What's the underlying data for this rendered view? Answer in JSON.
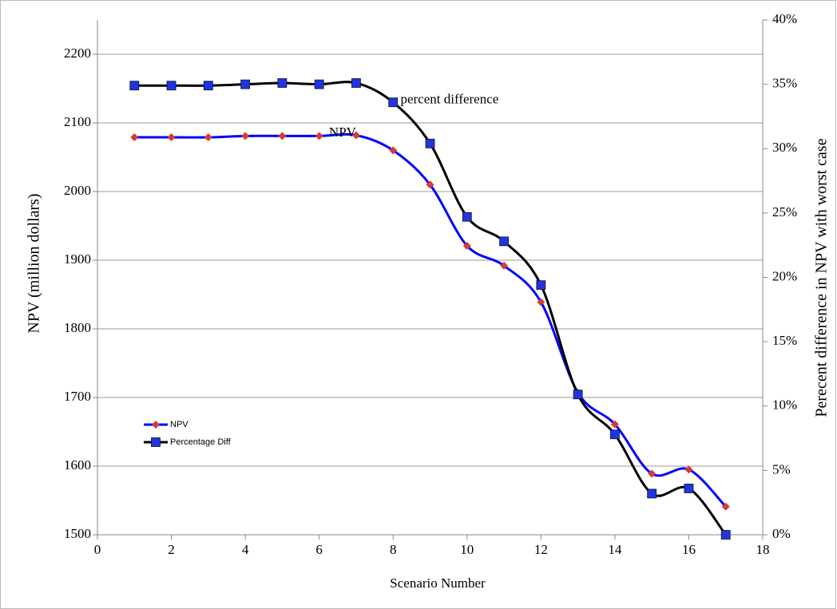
{
  "chart_data": {
    "type": "line",
    "x_label": "Scenario Number",
    "y_label": "NPV (million dollars)",
    "y2_label": "Perecent difference in NPV with worst case",
    "annotations": [
      {
        "text": "percent difference",
        "x": 8.2,
        "y": 2133
      },
      {
        "text": "NPV",
        "x": 7.0,
        "y": 2085
      }
    ],
    "x": [
      1,
      2,
      3,
      4,
      5,
      6,
      7,
      8,
      9,
      10,
      11,
      12,
      13,
      14,
      15,
      16,
      17
    ],
    "series": [
      {
        "name": "NPV",
        "color": "#0000ff",
        "marker": "diamond",
        "marker_color": "#d63a3a",
        "values": [
          2079,
          2079,
          2079,
          2081,
          2081,
          2081,
          2082,
          2060,
          2010,
          1921,
          1892,
          1839,
          1707,
          1661,
          1589,
          1595,
          1541
        ]
      },
      {
        "name": "Percentage Diff",
        "color": "#000000",
        "marker": "square",
        "marker_color": "#1f35e0",
        "axis": "y2",
        "values": [
          34.9,
          34.9,
          34.9,
          35.0,
          35.1,
          35.0,
          35.1,
          33.6,
          30.4,
          24.7,
          22.8,
          19.4,
          10.9,
          7.8,
          3.2,
          3.6,
          0
        ]
      }
    ],
    "xlim": [
      0,
      18
    ],
    "xticks": [
      0,
      2,
      4,
      6,
      8,
      10,
      12,
      14,
      16,
      18
    ],
    "ylim": [
      1500,
      2250
    ],
    "yticks": [
      1500,
      1600,
      1700,
      1800,
      1900,
      2000,
      2100,
      2200
    ],
    "y2lim": [
      0,
      40
    ],
    "y2ticks": [
      {
        "value": 0,
        "label": "0%"
      },
      {
        "value": 5,
        "label": "5%"
      },
      {
        "value": 10,
        "label": "10%"
      },
      {
        "value": 15,
        "label": "15%"
      },
      {
        "value": 20,
        "label": "20%"
      },
      {
        "value": 25,
        "label": "25%"
      },
      {
        "value": 30,
        "label": "30%"
      },
      {
        "value": 35,
        "label": "35%"
      },
      {
        "value": 40,
        "label": "40%"
      }
    ],
    "grid": true,
    "legend": "lower left"
  }
}
